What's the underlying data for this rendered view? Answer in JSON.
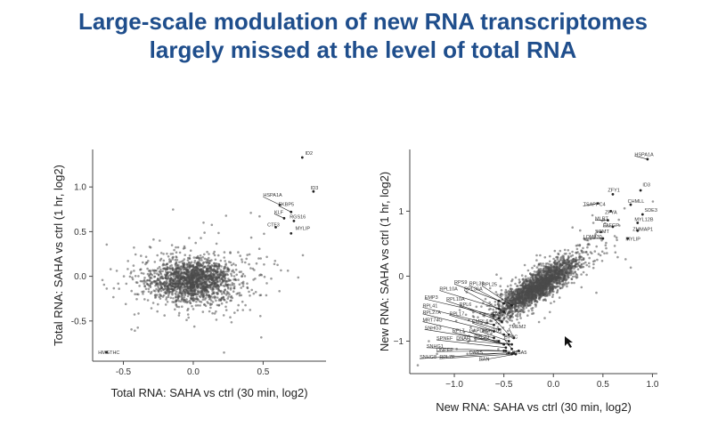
{
  "slide": {
    "title_line1": "Large-scale modulation of new RNA transcriptomes",
    "title_line2": "largely missed at the level of total RNA"
  },
  "chart_data": [
    {
      "type": "scatter",
      "name": "total-rna",
      "title": "",
      "xlabel": "Total RNA: SAHA vs ctrl (30 min, log2)",
      "ylabel": "Total RNA: SAHA vs ctrl (1 hr, log2)",
      "xlim": [
        -0.72,
        0.95
      ],
      "ylim": [
        -0.95,
        1.42
      ],
      "xticks": [
        -0.5,
        0.0,
        0.5
      ],
      "xtick_labels": [
        "-0.5",
        "0.0",
        "0.5"
      ],
      "yticks": [
        -0.5,
        0.0,
        0.5,
        1.0
      ],
      "ytick_labels": [
        "-0.5",
        "0.0",
        "0.5",
        "1.0"
      ],
      "cloud": {
        "x_center": 0.0,
        "y_center": -0.05,
        "x_spread": 0.15,
        "y_spread": 0.12,
        "n_points": 1800
      },
      "labeled_points": [
        {
          "label": "ID2",
          "x": 0.78,
          "y": 1.33,
          "lx": 0.8,
          "ly": 1.36
        },
        {
          "label": "ID3",
          "x": 0.86,
          "y": 0.95,
          "lx": 0.84,
          "ly": 0.97
        },
        {
          "label": "HSPA1A",
          "x": 0.62,
          "y": 0.8,
          "lx": 0.5,
          "ly": 0.89
        },
        {
          "label": "FKBP5",
          "x": 0.7,
          "y": 0.72,
          "lx": 0.61,
          "ly": 0.79
        },
        {
          "label": "KLF",
          "x": 0.65,
          "y": 0.65,
          "lx": 0.58,
          "ly": 0.7
        },
        {
          "label": "RGS16",
          "x": 0.72,
          "y": 0.62,
          "lx": 0.69,
          "ly": 0.65
        },
        {
          "label": "CTF3",
          "x": 0.59,
          "y": 0.55,
          "lx": 0.53,
          "ly": 0.56
        },
        {
          "label": "MYLIP",
          "x": 0.7,
          "y": 0.48,
          "lx": 0.73,
          "ly": 0.52
        },
        {
          "label": "HMGTHC",
          "x": -0.62,
          "y": -0.85,
          "lx": -0.68,
          "ly": -0.87
        }
      ]
    },
    {
      "type": "scatter",
      "name": "new-rna",
      "title": "",
      "xlabel": "New RNA: SAHA vs ctrl (30 min, log2)",
      "ylabel": "New RNA: SAHA vs ctrl (1 hr, log2)",
      "xlim": [
        -1.45,
        1.05
      ],
      "ylim": [
        -1.5,
        1.95
      ],
      "xticks": [
        -1.0,
        -0.5,
        0.0,
        0.5,
        1.0
      ],
      "xtick_labels": [
        "−1.0",
        "−0.5",
        "0.0",
        "0.5",
        "1.0"
      ],
      "yticks": [
        -1,
        0,
        1
      ],
      "ytick_labels": [
        "−1",
        "0",
        "1"
      ],
      "cloud": {
        "x_center": -0.15,
        "y_center": -0.15,
        "x_spread": 0.2,
        "y_spread": 0.22,
        "correlation": 0.85,
        "n_points": 2200
      },
      "labeled_points": [
        {
          "label": "HSPA1A",
          "x": 0.95,
          "y": 1.8,
          "lx": 0.82,
          "ly": 1.85
        },
        {
          "label": "ID3",
          "x": 0.88,
          "y": 1.32,
          "lx": 0.9,
          "ly": 1.38
        },
        {
          "label": "ZFY1",
          "x": 0.6,
          "y": 1.26,
          "lx": 0.55,
          "ly": 1.3
        },
        {
          "label": "TSAPPC4",
          "x": 0.45,
          "y": 1.12,
          "lx": 0.3,
          "ly": 1.08
        },
        {
          "label": "CHMLL",
          "x": 0.78,
          "y": 1.1,
          "lx": 0.75,
          "ly": 1.13
        },
        {
          "label": "ZFYA",
          "x": 0.58,
          "y": 1.0,
          "lx": 0.52,
          "ly": 0.96
        },
        {
          "label": "SDE3",
          "x": 0.9,
          "y": 0.95,
          "lx": 0.92,
          "ly": 0.99
        },
        {
          "label": "MLRT",
          "x": 0.55,
          "y": 0.86,
          "lx": 0.42,
          "ly": 0.86
        },
        {
          "label": "MYL12B",
          "x": 0.85,
          "y": 0.82,
          "lx": 0.82,
          "ly": 0.85
        },
        {
          "label": "FAFGP",
          "x": 0.6,
          "y": 0.76,
          "lx": 0.5,
          "ly": 0.76
        },
        {
          "label": "ZMMAP1",
          "x": 0.85,
          "y": 0.7,
          "lx": 0.8,
          "ly": 0.7
        },
        {
          "label": "SGMT",
          "x": 0.48,
          "y": 0.68,
          "lx": 0.42,
          "ly": 0.66
        },
        {
          "label": "LOM330",
          "x": 0.5,
          "y": 0.58,
          "lx": 0.3,
          "ly": 0.58
        },
        {
          "label": "MYLIP",
          "x": 0.75,
          "y": 0.58,
          "lx": 0.73,
          "ly": 0.55
        },
        {
          "label": "RPS9",
          "x": -0.55,
          "y": -0.38,
          "lx": -1.0,
          "ly": -0.12
        },
        {
          "label": "RPL39",
          "x": -0.5,
          "y": -0.42,
          "lx": -0.85,
          "ly": -0.14
        },
        {
          "label": "RPL10A",
          "x": -0.55,
          "y": -0.5,
          "lx": -1.15,
          "ly": -0.22
        },
        {
          "label": "RPL36A",
          "x": -0.5,
          "y": -0.55,
          "lx": -0.9,
          "ly": -0.22
        },
        {
          "label": "RPL25",
          "x": -0.42,
          "y": -0.45,
          "lx": -0.72,
          "ly": -0.15
        },
        {
          "label": "EMP3",
          "x": -0.6,
          "y": -0.6,
          "lx": -1.3,
          "ly": -0.35
        },
        {
          "label": "RPL10A",
          "x": -0.55,
          "y": -0.65,
          "lx": -1.08,
          "ly": -0.38
        },
        {
          "label": "RPL6",
          "x": -0.52,
          "y": -0.7,
          "lx": -0.95,
          "ly": -0.46
        },
        {
          "label": "RPL41",
          "x": -0.6,
          "y": -0.75,
          "lx": -1.32,
          "ly": -0.48
        },
        {
          "label": "RPL27A",
          "x": -0.6,
          "y": -0.85,
          "lx": -1.32,
          "ly": -0.58
        },
        {
          "label": "RPL17",
          "x": -0.55,
          "y": -0.82,
          "lx": -1.05,
          "ly": -0.6
        },
        {
          "label": "MRT74G",
          "x": -0.6,
          "y": -0.95,
          "lx": -1.32,
          "ly": -0.7
        },
        {
          "label": "EMRL6",
          "x": -0.5,
          "y": -0.9,
          "lx": -0.82,
          "ly": -0.72
        },
        {
          "label": "TPAT74G",
          "x": -0.45,
          "y": -0.9,
          "lx": -0.62,
          "ly": -0.62
        },
        {
          "label": "SNHG3",
          "x": -0.55,
          "y": -1.0,
          "lx": -1.3,
          "ly": -0.82
        },
        {
          "label": "RPL7",
          "x": -0.5,
          "y": -1.05,
          "lx": -1.02,
          "ly": -0.86
        },
        {
          "label": "GAPDH",
          "x": -0.5,
          "y": -1.05,
          "lx": -0.85,
          "ly": -0.86
        },
        {
          "label": "ANKRD1",
          "x": -0.45,
          "y": -1.0,
          "lx": -0.72,
          "ly": -0.86
        },
        {
          "label": "TMEM2",
          "x": -0.4,
          "y": -0.95,
          "lx": -0.45,
          "ly": -0.8
        },
        {
          "label": "SPNEF",
          "x": -0.48,
          "y": -1.1,
          "lx": -1.18,
          "ly": -0.98
        },
        {
          "label": "DNAH",
          "x": -0.45,
          "y": -1.05,
          "lx": -0.98,
          "ly": -0.98
        },
        {
          "label": "RPL23",
          "x": -0.42,
          "y": -1.05,
          "lx": -0.8,
          "ly": -0.96
        },
        {
          "label": "EIF3C",
          "x": -0.42,
          "y": -1.12,
          "lx": -0.5,
          "ly": -0.96
        },
        {
          "label": "SNHG1",
          "x": -0.5,
          "y": -1.15,
          "lx": -1.28,
          "ly": -1.1
        },
        {
          "label": "DNPEP",
          "x": -0.48,
          "y": -1.15,
          "lx": -1.18,
          "ly": -1.16
        },
        {
          "label": "SNHG8",
          "x": -0.45,
          "y": -1.18,
          "lx": -1.35,
          "ly": -1.27
        },
        {
          "label": "RPL7F",
          "x": -0.42,
          "y": -1.2,
          "lx": -1.15,
          "ly": -1.27
        },
        {
          "label": "DARS",
          "x": -0.4,
          "y": -1.18,
          "lx": -0.85,
          "ly": -1.2
        },
        {
          "label": "RAN",
          "x": -0.38,
          "y": -1.2,
          "lx": -0.75,
          "ly": -1.3
        },
        {
          "label": "SLC25A5",
          "x": -0.35,
          "y": -1.15,
          "lx": -0.48,
          "ly": -1.2
        }
      ]
    }
  ]
}
